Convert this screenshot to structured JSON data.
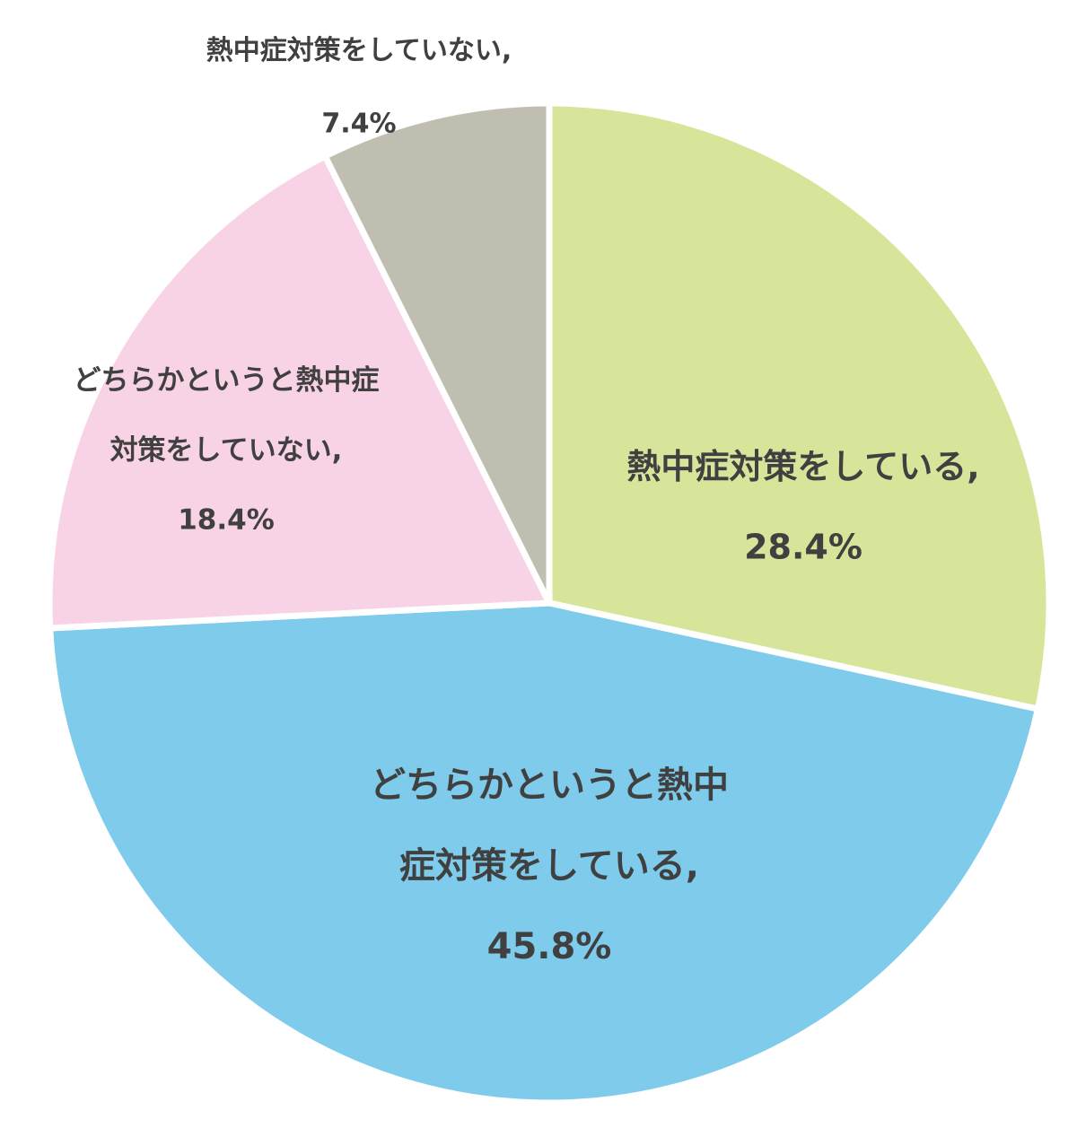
{
  "chart_data": {
    "type": "pie",
    "categories": [
      "熱中症対策をしている",
      "どちらかというと熱中症対策をしている",
      "どちらかというと熱中症対策をしていない",
      "熱中症対策をしていない"
    ],
    "values": [
      28.4,
      45.8,
      18.4,
      7.4
    ],
    "value_labels": [
      "28.4%",
      "45.8%",
      "18.4%",
      "7.4%"
    ],
    "separator": ",",
    "colors": [
      "#d7e59a",
      "#7ecbeb",
      "#f8d3e6",
      "#c0bdb1"
    ]
  }
}
